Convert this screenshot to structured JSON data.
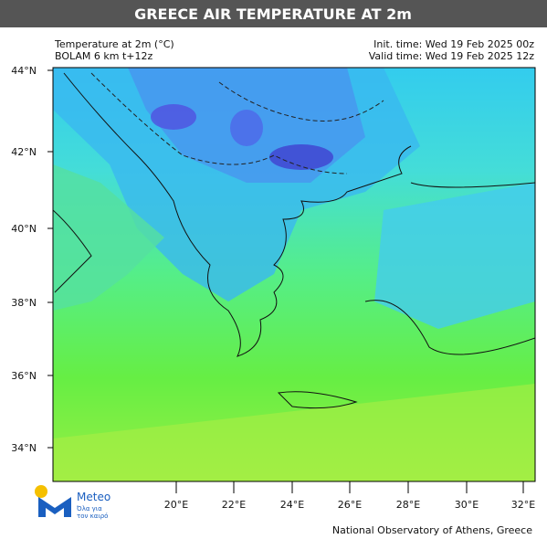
{
  "title": "GREECE AIR TEMPERATURE AT 2m",
  "header": {
    "left": [
      "Temperature at 2m (°C)",
      "BOLAM 6 km t+12z"
    ],
    "right": [
      "Init. time: Wed 19 Feb 2025 00z",
      "Valid time: Wed 19 Feb 2025 12z"
    ]
  },
  "map": {
    "lat_labels": [
      "44°N",
      "42°N",
      "40°N",
      "38°N",
      "36°N",
      "34°N"
    ],
    "lon_labels": [
      "20°E",
      "22°E",
      "24°E",
      "26°E",
      "28°E",
      "30°E",
      "32°E"
    ]
  },
  "logo": {
    "name": "Meteo",
    "tagline": [
      "Όλα για",
      "τον καιρό"
    ]
  },
  "footer": "National Observatory of Athens, Greece"
}
